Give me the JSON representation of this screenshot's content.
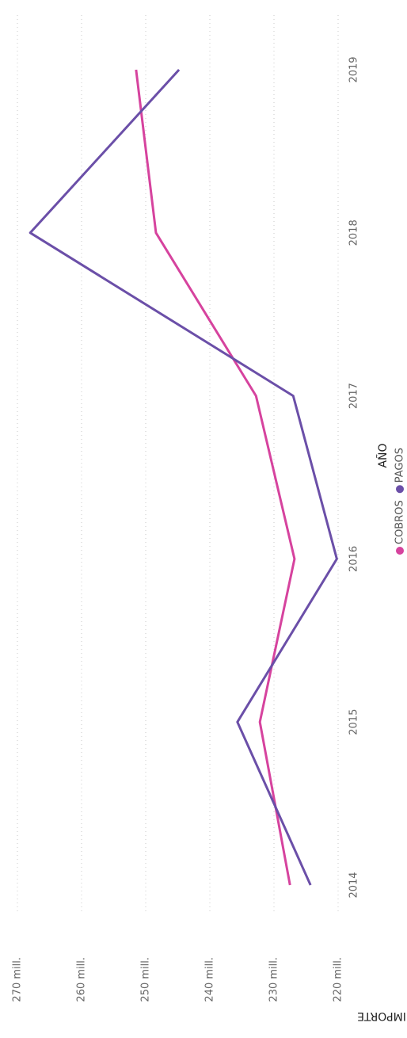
{
  "chart_data": {
    "type": "line",
    "x_label": "AÑO",
    "y_label": "IMPORTE",
    "categories": [
      "2014",
      "2015",
      "2016",
      "2017",
      "2018",
      "2019"
    ],
    "series": [
      {
        "name": "COBROS",
        "color": "#d6439e",
        "values": [
          227.5,
          232.2,
          226.8,
          232.8,
          248.4,
          251.5
        ]
      },
      {
        "name": "PAGOS",
        "color": "#6b4fa8",
        "values": [
          224.3,
          235.7,
          220.2,
          227.0,
          268.0,
          244.8
        ]
      }
    ],
    "ylim": [
      220,
      270
    ],
    "yticks": [
      {
        "value": 220,
        "label": "220 mill."
      },
      {
        "value": 230,
        "label": "230 mill."
      },
      {
        "value": 240,
        "label": "240 mill."
      },
      {
        "value": 250,
        "label": "250 mill."
      },
      {
        "value": 260,
        "label": "260 mill."
      },
      {
        "value": 270,
        "label": "270 mill."
      }
    ],
    "grid": true
  }
}
